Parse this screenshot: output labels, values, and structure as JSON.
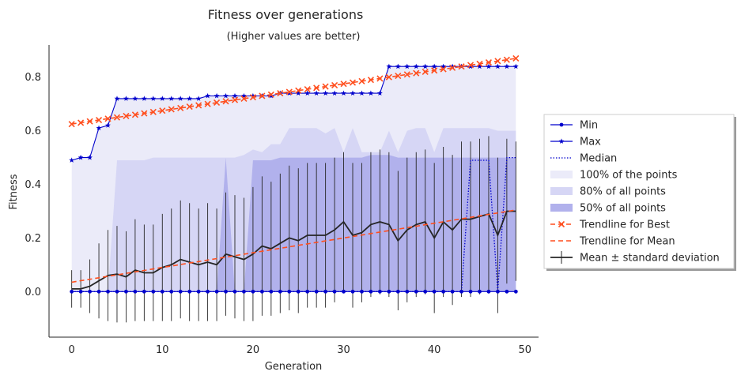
{
  "chart_data": {
    "type": "line",
    "title": "Fitness over generations",
    "subtitle": "(Higher values are better)",
    "xlabel": "Generation",
    "ylabel": "Fitness",
    "xlim": [
      -2.5,
      51.5
    ],
    "ylim": [
      -0.17,
      0.92
    ],
    "xticks": [
      "0",
      "10",
      "20",
      "30",
      "40",
      "50"
    ],
    "yticks": [
      "0.0",
      "0.2",
      "0.4",
      "0.6",
      "0.8"
    ],
    "grid": false,
    "legend_position": "right",
    "x": [
      0,
      1,
      2,
      3,
      4,
      5,
      6,
      7,
      8,
      9,
      10,
      11,
      12,
      13,
      14,
      15,
      16,
      17,
      18,
      19,
      20,
      21,
      22,
      23,
      24,
      25,
      26,
      27,
      28,
      29,
      30,
      31,
      32,
      33,
      34,
      35,
      36,
      37,
      38,
      39,
      40,
      41,
      42,
      43,
      44,
      45,
      46,
      47,
      48,
      49
    ],
    "series": [
      {
        "name": "Min",
        "color": "#0000cc",
        "style": "solid",
        "marker": "dot",
        "values": [
          0,
          0,
          0,
          0,
          0,
          0,
          0,
          0,
          0,
          0,
          0,
          0,
          0,
          0,
          0,
          0,
          0,
          0,
          0,
          0,
          0,
          0,
          0,
          0,
          0,
          0,
          0,
          0,
          0,
          0,
          0,
          0,
          0,
          0,
          0,
          0,
          0,
          0,
          0,
          0,
          0,
          0,
          0,
          0,
          0,
          0,
          0,
          0,
          0,
          0
        ]
      },
      {
        "name": "Max",
        "color": "#0000cc",
        "style": "solid",
        "marker": "star",
        "values": [
          0.49,
          0.5,
          0.5,
          0.61,
          0.62,
          0.72,
          0.72,
          0.72,
          0.72,
          0.72,
          0.72,
          0.72,
          0.72,
          0.72,
          0.72,
          0.73,
          0.73,
          0.73,
          0.73,
          0.73,
          0.73,
          0.73,
          0.73,
          0.74,
          0.74,
          0.74,
          0.74,
          0.74,
          0.74,
          0.74,
          0.74,
          0.74,
          0.74,
          0.74,
          0.74,
          0.84,
          0.84,
          0.84,
          0.84,
          0.84,
          0.84,
          0.84,
          0.84,
          0.84,
          0.84,
          0.84,
          0.84,
          0.84,
          0.84,
          0.84
        ]
      },
      {
        "name": "Median",
        "color": "#0000cc",
        "style": "dotted",
        "values": [
          0,
          0,
          0,
          0,
          0,
          0,
          0,
          0,
          0,
          0,
          0,
          0,
          0,
          0,
          0,
          0,
          0,
          0,
          0,
          0,
          0,
          0,
          0,
          0,
          0,
          0,
          0,
          0,
          0,
          0,
          0,
          0,
          0,
          0,
          0,
          0,
          0,
          0,
          0,
          0,
          0,
          0,
          0,
          0,
          0.49,
          0.49,
          0.49,
          0,
          0.5,
          0.5
        ]
      },
      {
        "name": "Mean ± standard deviation",
        "color": "#262626",
        "style": "solid",
        "values": [
          0.01,
          0.01,
          0.02,
          0.04,
          0.06,
          0.065,
          0.055,
          0.08,
          0.07,
          0.07,
          0.09,
          0.1,
          0.12,
          0.11,
          0.1,
          0.11,
          0.1,
          0.14,
          0.13,
          0.12,
          0.14,
          0.17,
          0.16,
          0.18,
          0.2,
          0.19,
          0.21,
          0.21,
          0.21,
          0.23,
          0.26,
          0.21,
          0.22,
          0.25,
          0.26,
          0.25,
          0.19,
          0.23,
          0.25,
          0.26,
          0.2,
          0.26,
          0.23,
          0.27,
          0.27,
          0.28,
          0.29,
          0.21,
          0.3,
          0.3
        ],
        "std": [
          0.07,
          0.07,
          0.1,
          0.14,
          0.17,
          0.18,
          0.17,
          0.19,
          0.18,
          0.18,
          0.2,
          0.21,
          0.22,
          0.22,
          0.21,
          0.22,
          0.21,
          0.23,
          0.23,
          0.23,
          0.25,
          0.26,
          0.25,
          0.26,
          0.27,
          0.27,
          0.27,
          0.27,
          0.27,
          0.27,
          0.26,
          0.27,
          0.26,
          0.27,
          0.27,
          0.27,
          0.26,
          0.27,
          0.27,
          0.27,
          0.28,
          0.28,
          0.28,
          0.29,
          0.29,
          0.29,
          0.29,
          0.29,
          0.27,
          0.26
        ]
      },
      {
        "name": "Trendline for Best",
        "color": "#ff4f1f",
        "style": "dashed",
        "marker": "x",
        "values": [
          0.625,
          0.63,
          0.635,
          0.64,
          0.645,
          0.65,
          0.655,
          0.66,
          0.665,
          0.67,
          0.675,
          0.68,
          0.685,
          0.69,
          0.695,
          0.7,
          0.705,
          0.71,
          0.715,
          0.72,
          0.725,
          0.73,
          0.735,
          0.74,
          0.745,
          0.75,
          0.755,
          0.76,
          0.765,
          0.77,
          0.775,
          0.78,
          0.785,
          0.79,
          0.795,
          0.8,
          0.805,
          0.81,
          0.815,
          0.82,
          0.825,
          0.83,
          0.835,
          0.84,
          0.845,
          0.85,
          0.855,
          0.86,
          0.865,
          0.87
        ]
      },
      {
        "name": "Trendline for Mean",
        "color": "#ff4f1f",
        "style": "dashed",
        "values": [
          0.035,
          0.0405,
          0.046,
          0.0515,
          0.057,
          0.0625,
          0.068,
          0.0735,
          0.079,
          0.0845,
          0.09,
          0.0955,
          0.101,
          0.1065,
          0.112,
          0.1175,
          0.123,
          0.1285,
          0.134,
          0.1395,
          0.145,
          0.1505,
          0.156,
          0.1615,
          0.167,
          0.1725,
          0.178,
          0.1835,
          0.189,
          0.1945,
          0.2,
          0.2055,
          0.211,
          0.2165,
          0.222,
          0.2275,
          0.233,
          0.2385,
          0.244,
          0.2495,
          0.255,
          0.2605,
          0.266,
          0.2715,
          0.277,
          0.2825,
          0.288,
          0.2935,
          0.299,
          0.3045
        ]
      }
    ],
    "bands": [
      {
        "name": "100% of the points",
        "color": "#ebebf9",
        "lower": [
          0,
          0,
          0,
          0,
          0,
          0,
          0,
          0,
          0,
          0,
          0,
          0,
          0,
          0,
          0,
          0,
          0,
          0,
          0,
          0,
          0,
          0,
          0,
          0,
          0,
          0,
          0,
          0,
          0,
          0,
          0,
          0,
          0,
          0,
          0,
          0,
          0,
          0,
          0,
          0,
          0,
          0,
          0,
          0,
          0,
          0,
          0,
          0,
          0,
          0
        ],
        "upper": [
          0.49,
          0.5,
          0.5,
          0.61,
          0.62,
          0.72,
          0.72,
          0.72,
          0.72,
          0.72,
          0.72,
          0.72,
          0.72,
          0.72,
          0.72,
          0.73,
          0.73,
          0.73,
          0.73,
          0.73,
          0.73,
          0.73,
          0.73,
          0.74,
          0.74,
          0.74,
          0.74,
          0.74,
          0.74,
          0.74,
          0.74,
          0.74,
          0.74,
          0.74,
          0.74,
          0.84,
          0.84,
          0.84,
          0.84,
          0.84,
          0.84,
          0.84,
          0.84,
          0.84,
          0.84,
          0.84,
          0.84,
          0.84,
          0.84,
          0.84
        ]
      },
      {
        "name": "80% of all points",
        "color": "#d6d6f5",
        "lower": [
          0,
          0,
          0,
          0,
          0,
          0,
          0,
          0,
          0,
          0,
          0,
          0,
          0,
          0,
          0,
          0,
          0,
          0,
          0,
          0,
          0,
          0,
          0,
          0,
          0,
          0,
          0,
          0,
          0,
          0,
          0,
          0,
          0,
          0,
          0,
          0,
          0,
          0,
          0,
          0,
          0,
          0,
          0,
          0,
          0,
          0,
          0,
          0,
          0,
          0
        ],
        "upper": [
          0,
          0,
          0,
          0,
          0,
          0.49,
          0.49,
          0.49,
          0.49,
          0.5,
          0.5,
          0.5,
          0.5,
          0.5,
          0.5,
          0.5,
          0.5,
          0.5,
          0.5,
          0.51,
          0.53,
          0.52,
          0.55,
          0.55,
          0.61,
          0.61,
          0.61,
          0.61,
          0.59,
          0.61,
          0.52,
          0.61,
          0.52,
          0.52,
          0.52,
          0.6,
          0.52,
          0.6,
          0.61,
          0.61,
          0.52,
          0.61,
          0.61,
          0.61,
          0.61,
          0.61,
          0.61,
          0.6,
          0.6,
          0.6
        ]
      },
      {
        "name": "50% of all points",
        "color": "#b1b1ec",
        "lower": [
          0,
          0,
          0,
          0,
          0,
          0,
          0,
          0,
          0,
          0,
          0,
          0,
          0,
          0,
          0,
          0,
          0,
          0,
          0,
          0,
          0,
          0,
          0,
          0,
          0,
          0,
          0,
          0,
          0,
          0,
          0,
          0,
          0,
          0,
          0,
          0,
          0,
          0,
          0,
          0,
          0,
          0,
          0,
          0,
          0,
          0,
          0,
          0,
          0,
          0
        ],
        "upper": [
          0,
          0,
          0,
          0,
          0,
          0,
          0,
          0,
          0,
          0,
          0,
          0,
          0,
          0,
          0,
          0,
          0,
          0.5,
          0,
          0,
          0.49,
          0.49,
          0.49,
          0.5,
          0.5,
          0.5,
          0.5,
          0.5,
          0.5,
          0.5,
          0.5,
          0.5,
          0.5,
          0.51,
          0.51,
          0.51,
          0.5,
          0.5,
          0.5,
          0.5,
          0.5,
          0.5,
          0.5,
          0.5,
          0.5,
          0.5,
          0.5,
          0.5,
          0.5,
          0.5
        ]
      }
    ],
    "legend": [
      {
        "label": "Min",
        "kind": "line-dot",
        "color": "#0000cc"
      },
      {
        "label": "Max",
        "kind": "line-star",
        "color": "#0000cc"
      },
      {
        "label": "Median",
        "kind": "dotted",
        "color": "#0000cc"
      },
      {
        "label": "100% of the points",
        "kind": "patch",
        "color": "#ebebf9"
      },
      {
        "label": "80% of all points",
        "kind": "patch",
        "color": "#d6d6f5"
      },
      {
        "label": "50% of all points",
        "kind": "patch",
        "color": "#b1b1ec"
      },
      {
        "label": "Trendline for Best",
        "kind": "dashed-x",
        "color": "#ff4f1f"
      },
      {
        "label": "Trendline for Mean",
        "kind": "dashed",
        "color": "#ff4f1f"
      },
      {
        "label": "Mean ± standard deviation",
        "kind": "errbar",
        "color": "#262626"
      }
    ]
  }
}
